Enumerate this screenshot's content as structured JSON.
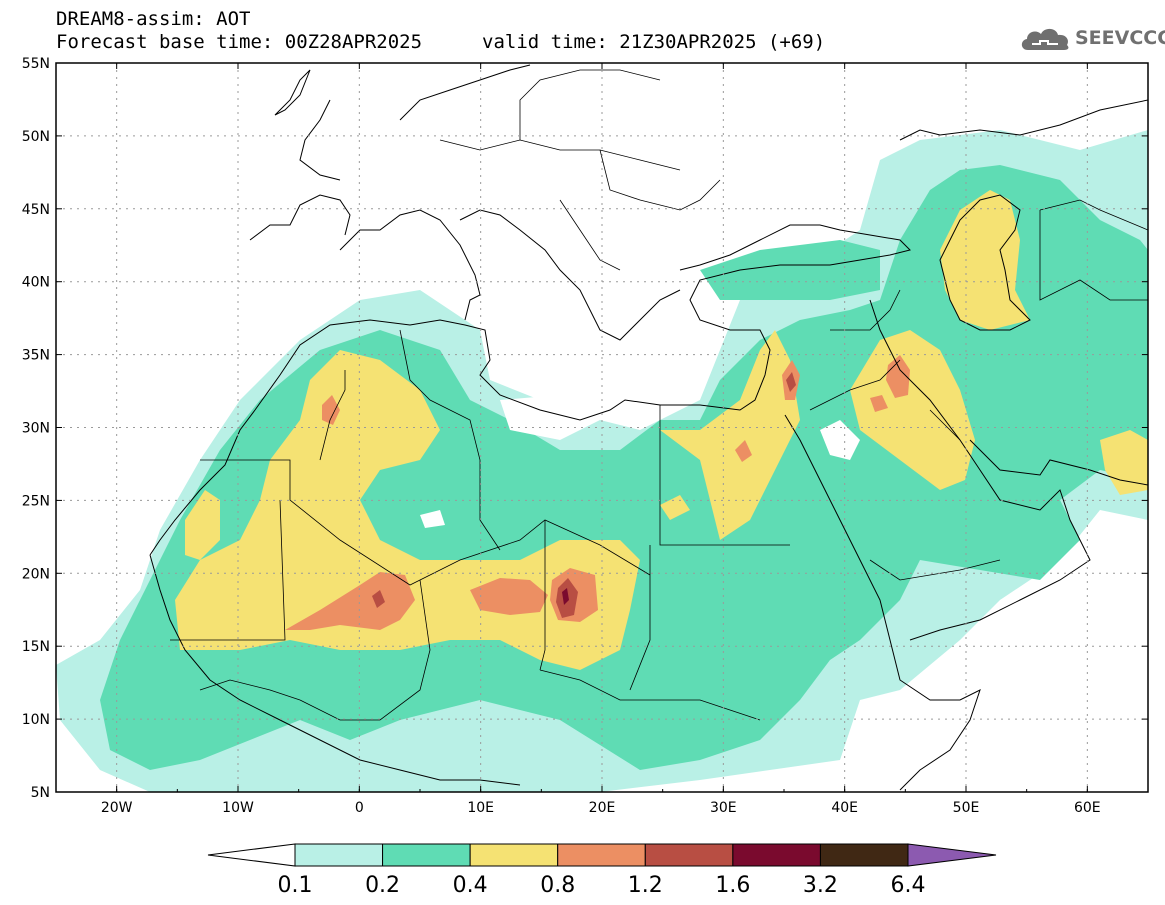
{
  "header": {
    "line1": "DREAM8-assim: AOT",
    "line2_left": "Forecast base time: 00Z28APR2025",
    "line2_right": "valid time: 21Z30APR2025 (+69)"
  },
  "logo": {
    "text": "SEEVCCC",
    "icon": "cloud-icon"
  },
  "map": {
    "lat_labels": [
      "55N",
      "50N",
      "45N",
      "40N",
      "35N",
      "30N",
      "25N",
      "20N",
      "15N",
      "10N",
      "5N"
    ],
    "lon_labels": [
      "20W",
      "10W",
      "0",
      "10E",
      "20E",
      "30E",
      "40E",
      "50E",
      "60E"
    ],
    "lon_range": [
      -25,
      65
    ],
    "lat_range": [
      5,
      55
    ],
    "grid": "dotted"
  },
  "colorbar": {
    "labels": [
      "0.1",
      "0.2",
      "0.4",
      "0.8",
      "1.2",
      "1.6",
      "3.2",
      "6.4"
    ],
    "colors": [
      "#b9f0e6",
      "#5fdcb4",
      "#f5e273",
      "#ec8f63",
      "#b84e43",
      "#7a0a2e",
      "#402814"
    ],
    "over_color": "#8c5ab0",
    "under_color": "#ffffff"
  },
  "features": {
    "coastline_color": "#000000",
    "country_border_color": "#000000"
  }
}
